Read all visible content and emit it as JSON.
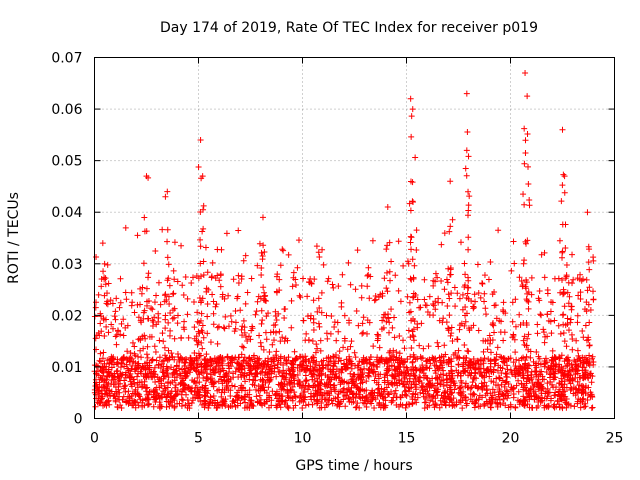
{
  "chart_data": {
    "type": "scatter",
    "title": "Day 174 of 2019, Rate Of TEC Index for receiver p019",
    "xlabel": "GPS time / hours",
    "ylabel": "ROTI / TECUs",
    "xlim": [
      0,
      25
    ],
    "ylim": [
      0,
      0.07
    ],
    "x_ticks": [
      0,
      5,
      10,
      15,
      20,
      25
    ],
    "x_tick_labels": [
      "0",
      "5",
      "10",
      "15",
      "20",
      "25"
    ],
    "y_ticks": [
      0,
      0.01,
      0.02,
      0.03,
      0.04,
      0.05,
      0.06,
      0.07
    ],
    "y_tick_labels": [
      "0",
      "0.01",
      "0.02",
      "0.03",
      "0.04",
      "0.05",
      "0.06",
      "0.07"
    ],
    "grid": true,
    "marker": "+",
    "color": "#ff0000",
    "series": [
      {
        "name": "ROTI",
        "baseline_range": [
          0.002,
          0.012
        ],
        "x_range": [
          0,
          24
        ],
        "notable_points": [
          {
            "x": 0.4,
            "y": 0.034
          },
          {
            "x": 2.5,
            "y": 0.047
          },
          {
            "x": 3.5,
            "y": 0.044
          },
          {
            "x": 5.1,
            "y": 0.054
          },
          {
            "x": 5.2,
            "y": 0.047
          },
          {
            "x": 8.1,
            "y": 0.039
          },
          {
            "x": 14.1,
            "y": 0.041
          },
          {
            "x": 15.2,
            "y": 0.062
          },
          {
            "x": 15.3,
            "y": 0.06
          },
          {
            "x": 17.1,
            "y": 0.046
          },
          {
            "x": 17.9,
            "y": 0.063
          },
          {
            "x": 17.9,
            "y": 0.052
          },
          {
            "x": 20.7,
            "y": 0.067
          },
          {
            "x": 20.8,
            "y": 0.0625
          },
          {
            "x": 22.5,
            "y": 0.056
          },
          {
            "x": 22.6,
            "y": 0.047
          },
          {
            "x": 23.7,
            "y": 0.04
          }
        ]
      }
    ]
  }
}
